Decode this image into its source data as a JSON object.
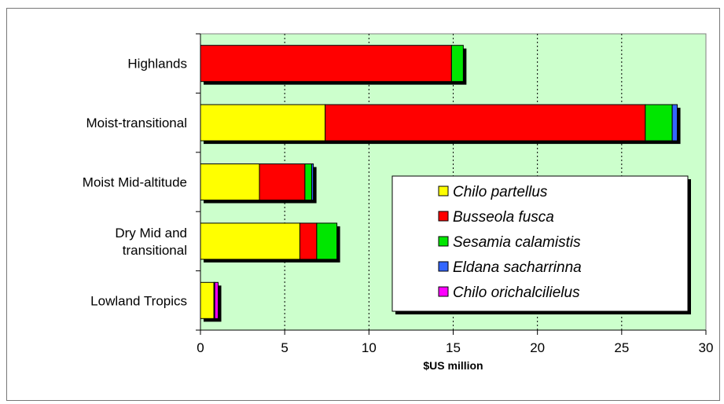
{
  "chart_data": {
    "type": "bar",
    "orientation": "horizontal",
    "stacked": true,
    "categories": [
      "Highlands",
      "Moist-transitional",
      "Moist Mid-altitude",
      "Dry Mid and transitional",
      "Lowland Tropics"
    ],
    "category_lines": [
      [
        "Highlands"
      ],
      [
        "Moist-transitional"
      ],
      [
        "Moist Mid-altitude"
      ],
      [
        "Dry Mid and",
        "transitional"
      ],
      [
        "Lowland Tropics"
      ]
    ],
    "series": [
      {
        "name": "Chilo partellus",
        "color": "#ffff00",
        "values": [
          0,
          7.4,
          3.5,
          5.9,
          0.8
        ]
      },
      {
        "name": "Busseola fusca",
        "color": "#ff0000",
        "values": [
          14.9,
          19.0,
          2.7,
          1.0,
          0
        ]
      },
      {
        "name": "Sesamia calamistis",
        "color": "#00e600",
        "values": [
          0.7,
          1.6,
          0.4,
          1.2,
          0
        ]
      },
      {
        "name": "Eldana sacharrinna",
        "color": "#3366ff",
        "values": [
          0,
          0.3,
          0.1,
          0,
          0.05
        ]
      },
      {
        "name": "Chilo orichalcilielus",
        "color": "#ff00ff",
        "values": [
          0,
          0,
          0,
          0,
          0.2
        ]
      }
    ],
    "xlabel": "$US million",
    "xlim": [
      0,
      30
    ],
    "xticks": [
      0,
      5,
      10,
      15,
      20,
      25,
      30
    ],
    "grid": "vertical dotted",
    "plot_background": "#ccffcc",
    "legend_position": "lower-right"
  }
}
